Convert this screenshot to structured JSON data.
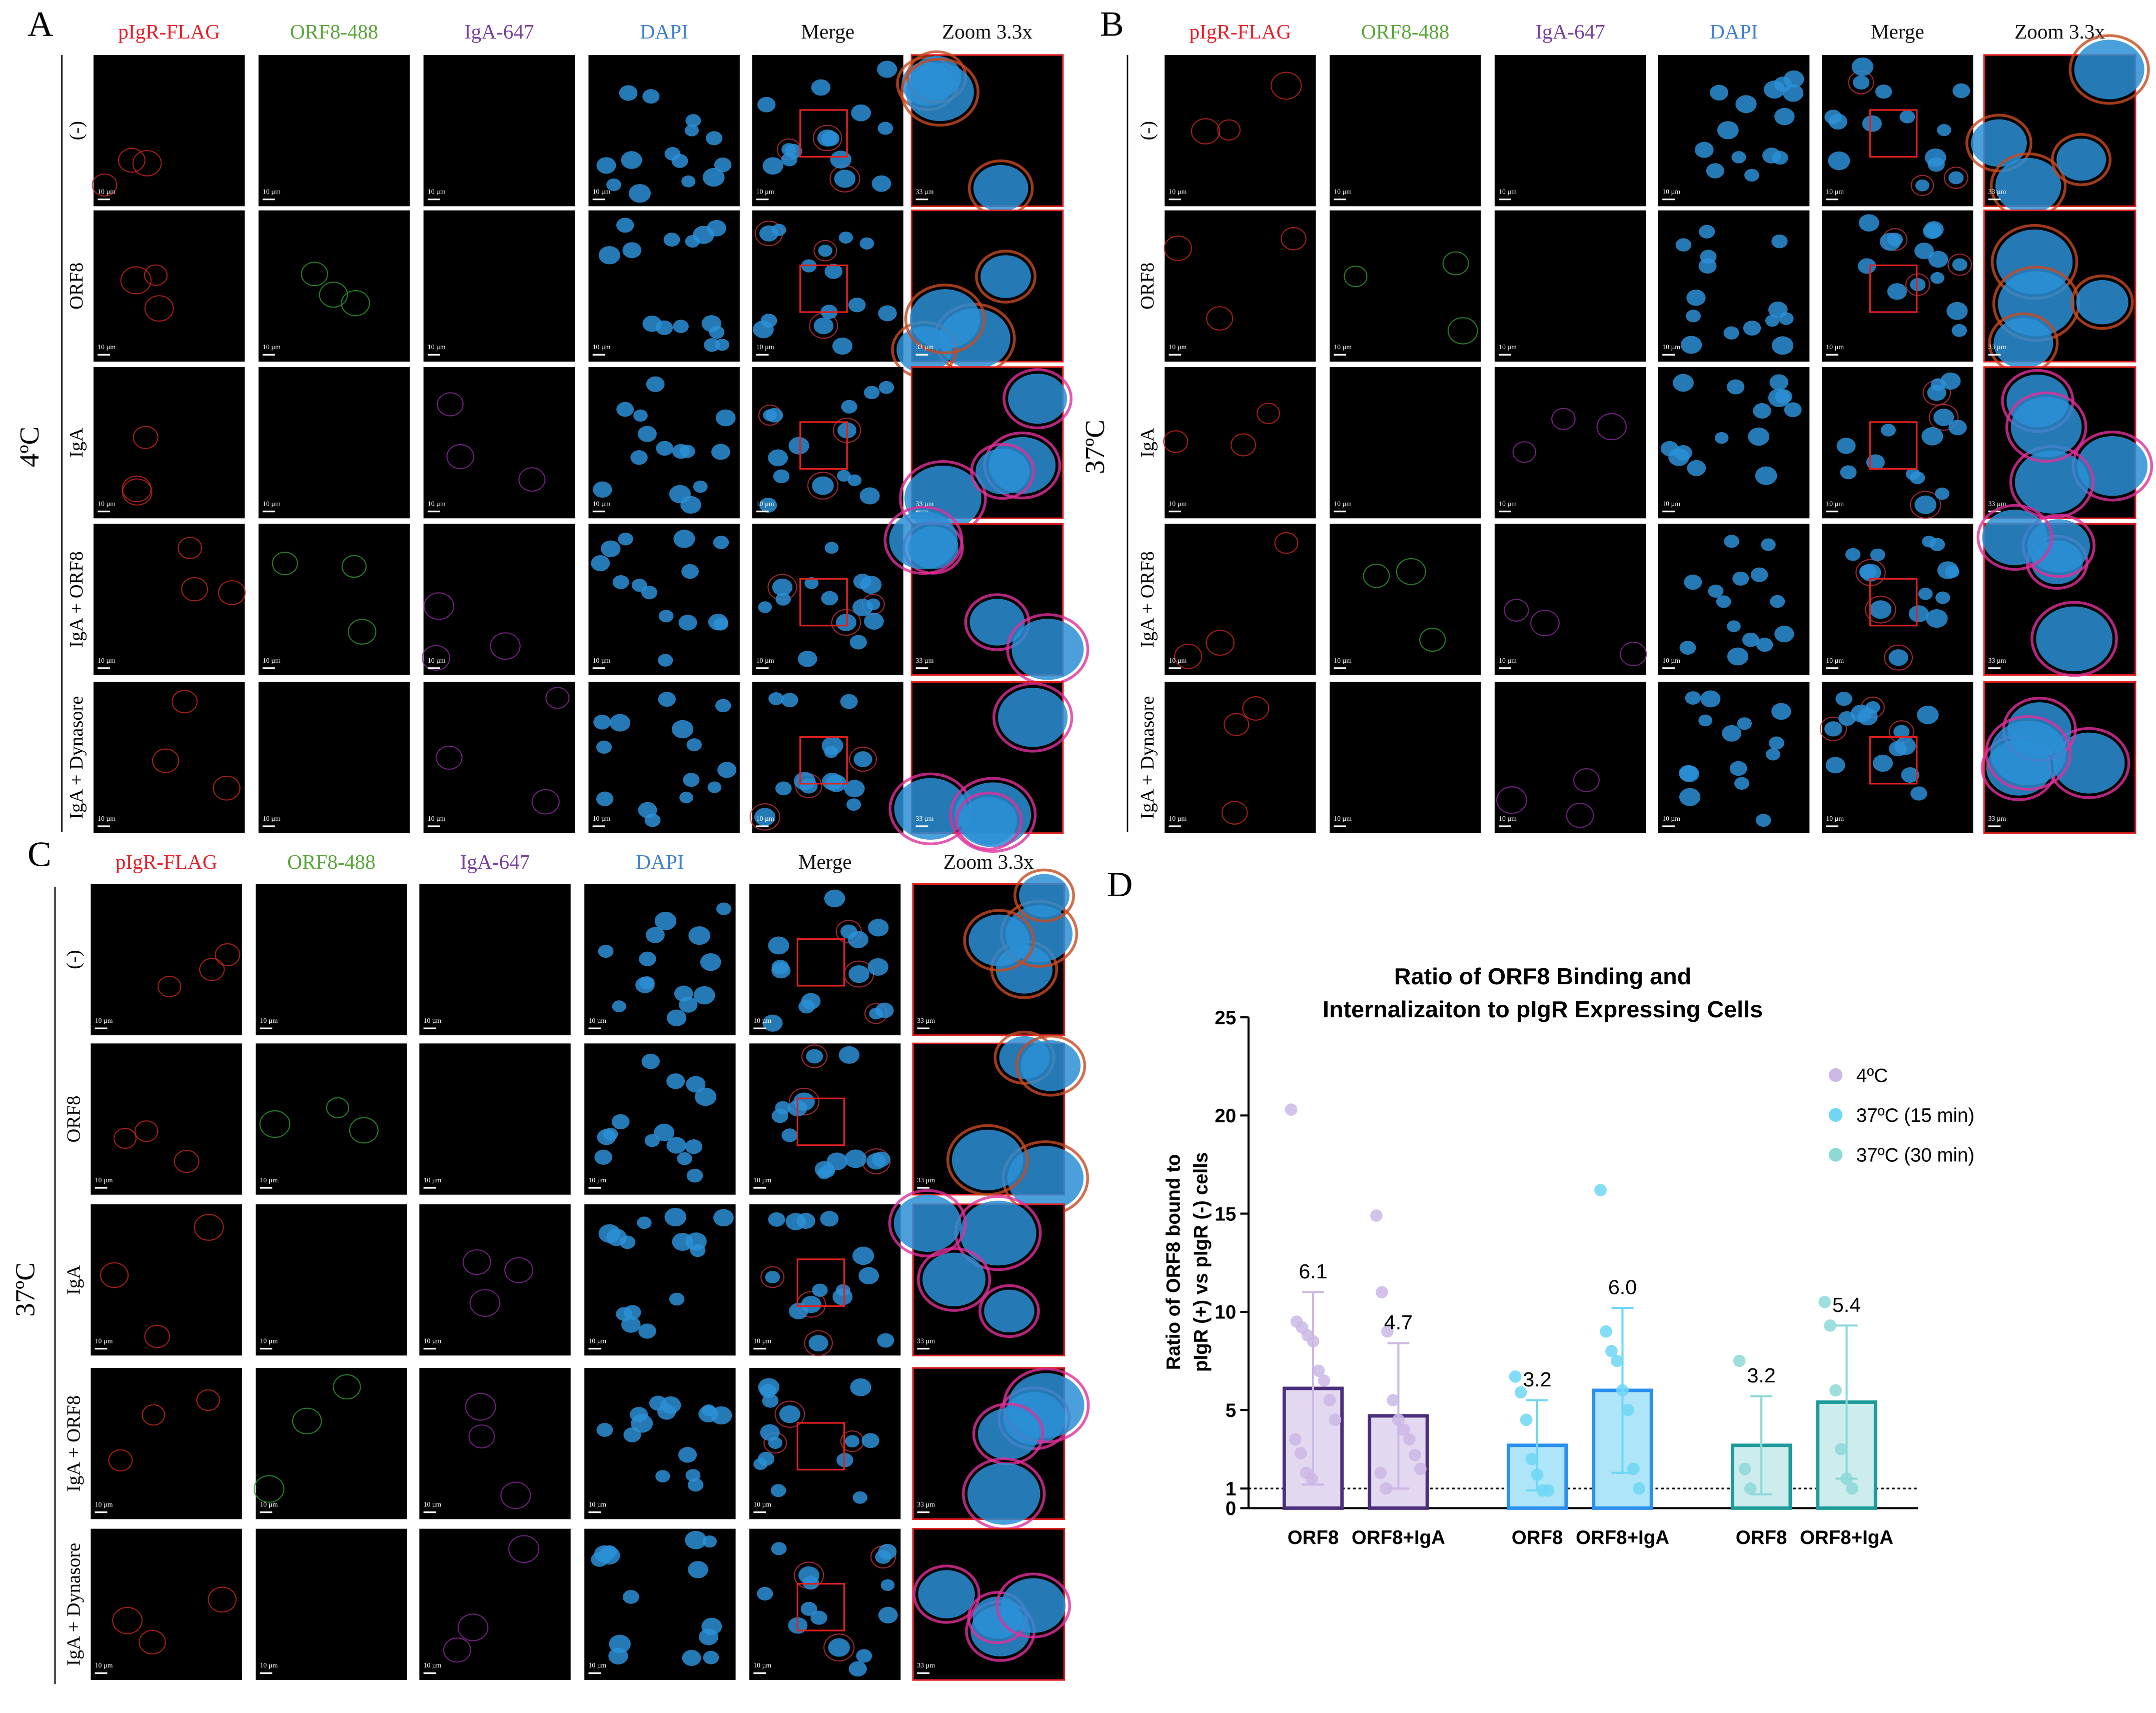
{
  "panels": [
    {
      "label": "A",
      "temperature": "4ºC",
      "scale_bar": "10 µm",
      "zoom_scale_bar": "33 µm",
      "columns": [
        {
          "text": "pIgR-FLAG",
          "color": "#e8202a"
        },
        {
          "text": "ORF8-488",
          "color": "#5aa538"
        },
        {
          "text": "IgA-647",
          "color": "#7b3fa0"
        },
        {
          "text": "DAPI",
          "color": "#3d7fd0"
        },
        {
          "text": "Merge",
          "color": "#111111"
        },
        {
          "text": "Zoom 3.3x",
          "color": "#111111"
        }
      ],
      "rows": [
        "(-)",
        "ORF8",
        "IgA",
        "IgA + ORF8",
        "IgA + Dynasore"
      ]
    },
    {
      "label": "B",
      "temperature": "37ºC",
      "scale_bar": "10 µm",
      "zoom_scale_bar": "33 µm",
      "columns": [
        {
          "text": "pIgR-FLAG",
          "color": "#e8202a"
        },
        {
          "text": "ORF8-488",
          "color": "#5aa538"
        },
        {
          "text": "IgA-647",
          "color": "#7b3fa0"
        },
        {
          "text": "DAPI",
          "color": "#3d7fd0"
        },
        {
          "text": "Merge",
          "color": "#111111"
        },
        {
          "text": "Zoom 3.3x",
          "color": "#111111"
        }
      ],
      "rows": [
        "(-)",
        "ORF8",
        "IgA",
        "IgA + ORF8",
        "IgA + Dynasore"
      ]
    },
    {
      "label": "C",
      "temperature": "37ºC",
      "scale_bar": "10 µm",
      "zoom_scale_bar": "33 µm",
      "columns": [
        {
          "text": "pIgR-FLAG",
          "color": "#e8202a"
        },
        {
          "text": "ORF8-488",
          "color": "#5aa538"
        },
        {
          "text": "IgA-647",
          "color": "#7b3fa0"
        },
        {
          "text": "DAPI",
          "color": "#3d7fd0"
        },
        {
          "text": "Merge",
          "color": "#111111"
        },
        {
          "text": "Zoom 3.3x",
          "color": "#111111"
        }
      ],
      "rows": [
        "(-)",
        "ORF8",
        "IgA",
        "IgA + ORF8",
        "IgA + Dynasore"
      ]
    }
  ],
  "chart_data": {
    "type": "bar",
    "label": "D",
    "title": [
      "Ratio of ORF8 Binding and",
      "Internalizaiton to pIgR Expressing Cells"
    ],
    "y_label": [
      "Ratio of ORF8 bound to",
      "pIgR (+) vs pIgR (-) cells"
    ],
    "categories": [
      "ORF8",
      "ORF8+IgA"
    ],
    "ylim": [
      0,
      25
    ],
    "yticks": [
      0,
      1,
      5,
      10,
      15,
      20,
      25
    ],
    "reference_line": 1,
    "series": [
      {
        "name": "4ºC",
        "color": "#e2d8f0",
        "edge": "#4b2e7a",
        "point_color": "#cbb8e6",
        "values": [
          6.1,
          4.7
        ],
        "value_labels": [
          "6.1",
          "4.7"
        ],
        "errors": [
          4.9,
          3.7
        ],
        "points": [
          [
            20.3,
            9.5,
            9.2,
            8.8,
            8.5,
            7.0,
            6.5,
            5.5,
            4.5,
            3.5,
            2.8,
            1.8,
            1.5
          ],
          [
            14.9,
            11.0,
            9.0,
            5.5,
            4.5,
            4.0,
            3.5,
            2.7,
            2.0,
            1.8,
            1.0
          ]
        ]
      },
      {
        "name": "37ºC (15 min)",
        "color": "#aee5f8",
        "edge": "#2a8ff0",
        "point_color": "#6fd7f5",
        "values": [
          3.2,
          6.0
        ],
        "value_labels": [
          "3.2",
          "6.0"
        ],
        "errors": [
          2.3,
          4.2
        ],
        "points": [
          [
            6.7,
            5.9,
            4.5,
            2.5,
            1.7,
            0.9,
            0.9
          ],
          [
            16.2,
            9.0,
            8.0,
            7.5,
            6.0,
            5.0,
            2.0,
            1.0
          ]
        ]
      },
      {
        "name": "37ºC (30 min)",
        "color": "#cdeced",
        "edge": "#1f9a9a",
        "point_color": "#8ed8d8",
        "values": [
          3.2,
          5.4
        ],
        "value_labels": [
          "3.2",
          "5.4"
        ],
        "errors": [
          2.5,
          3.9
        ],
        "points": [
          [
            7.5,
            2.0,
            1.0
          ],
          [
            10.5,
            9.3,
            6.0,
            3.0,
            1.5,
            1.0
          ]
        ]
      }
    ]
  }
}
